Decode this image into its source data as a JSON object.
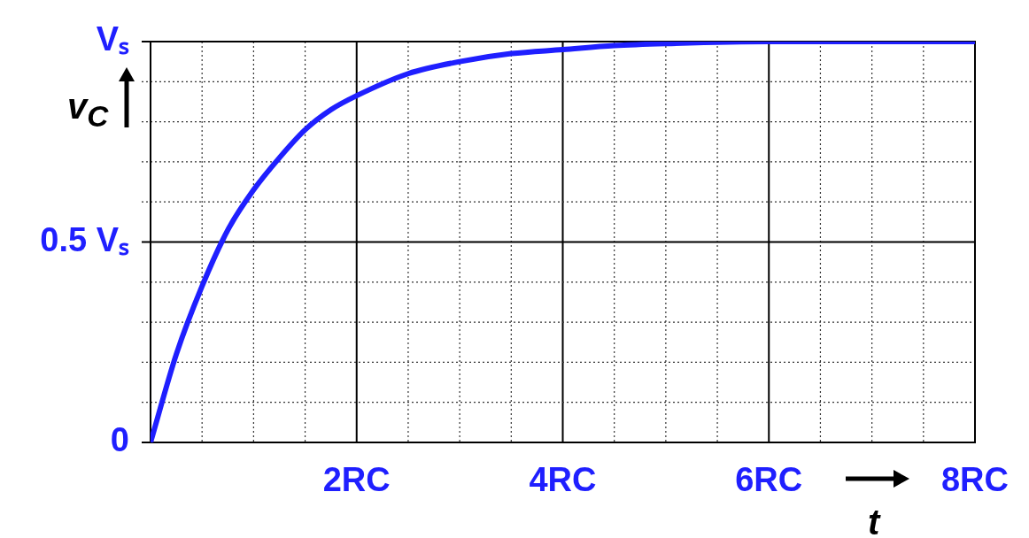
{
  "chart_data": {
    "type": "line",
    "xlabel": "t",
    "ylabel": "v$_{C}$",
    "x": [
      0,
      0.25,
      0.5,
      0.75,
      1,
      1.25,
      1.5,
      1.75,
      2,
      2.5,
      3,
      3.5,
      4,
      4.5,
      5,
      6,
      7,
      8
    ],
    "series": [
      {
        "color": "#1f1fff",
        "values": [
          0,
          0.22,
          0.39,
          0.53,
          0.63,
          0.71,
          0.78,
          0.83,
          0.865,
          0.92,
          0.95,
          0.97,
          0.98,
          0.99,
          0.995,
          1,
          1,
          1
        ]
      }
    ],
    "xlim": [
      0,
      8
    ],
    "xticks": [
      {
        "value": 0,
        "label": null
      },
      {
        "value": 0.5,
        "label": null
      },
      {
        "value": 1,
        "label": null
      },
      {
        "value": 1.5,
        "label": null
      },
      {
        "value": 2,
        "label": "2RC"
      },
      {
        "value": 2.5,
        "label": null
      },
      {
        "value": 3,
        "label": null
      },
      {
        "value": 3.5,
        "label": null
      },
      {
        "value": 4,
        "label": "4RC"
      },
      {
        "value": 4.5,
        "label": null
      },
      {
        "value": 5,
        "label": null
      },
      {
        "value": 5.5,
        "label": null
      },
      {
        "value": 6,
        "label": "6RC"
      },
      {
        "value": 6.5,
        "label": null
      },
      {
        "value": 7,
        "label": null
      },
      {
        "value": 7.5,
        "label": null
      },
      {
        "value": 8,
        "label": "8RC"
      }
    ],
    "ylim": [
      0,
      1
    ],
    "yticks": [
      {
        "value": 0,
        "label": "0"
      },
      {
        "value": 0.1,
        "label": null
      },
      {
        "value": 0.2,
        "label": null
      },
      {
        "value": 0.3,
        "label": null
      },
      {
        "value": 0.4,
        "label": null
      },
      {
        "value": 0.5,
        "label": "0.5 Vₛ"
      },
      {
        "value": 0.6,
        "label": null
      },
      {
        "value": 0.7,
        "label": null
      },
      {
        "value": 0.8,
        "label": null
      },
      {
        "value": 0.9,
        "label": null
      },
      {
        "value": 1,
        "label": "Vₛ"
      }
    ],
    "grid": true,
    "legend": false,
    "marker": "none",
    "line_style": "solid"
  }
}
